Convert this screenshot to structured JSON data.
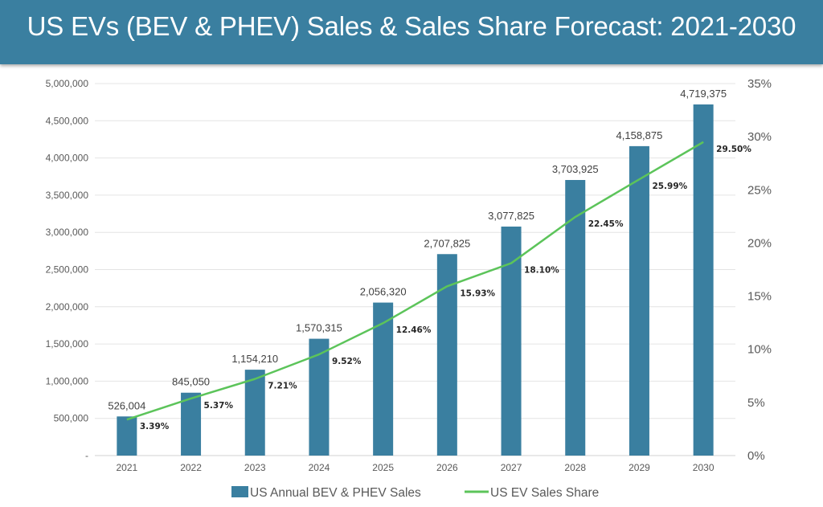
{
  "title": "US EVs (BEV & PHEV) Sales & Sales Share Forecast: 2021-2030",
  "chart_data": {
    "type": "bar+line",
    "categories": [
      "2021",
      "2022",
      "2023",
      "2024",
      "2025",
      "2026",
      "2027",
      "2028",
      "2029",
      "2030"
    ],
    "series": [
      {
        "name": "US Annual BEV & PHEV Sales",
        "type": "bar",
        "axis": "left",
        "color": "#3a7fa0",
        "values": [
          526004,
          845050,
          1154210,
          1570315,
          2056320,
          2707825,
          3077825,
          3703925,
          4158875,
          4719375
        ],
        "labels": [
          "526,004",
          "845,050",
          "1,154,210",
          "1,570,315",
          "2,056,320",
          "2,707,825",
          "3,077,825",
          "3,703,925",
          "4,158,875",
          "4,719,375"
        ]
      },
      {
        "name": "US EV Sales Share",
        "type": "line",
        "axis": "right",
        "color": "#5cc45a",
        "values": [
          3.39,
          5.37,
          7.21,
          9.52,
          12.46,
          15.93,
          18.1,
          22.45,
          25.99,
          29.5
        ],
        "labels": [
          "3.39%",
          "5.37%",
          "7.21%",
          "9.52%",
          "12.46%",
          "15.93%",
          "18.10%",
          "22.45%",
          "25.99%",
          "29.50%"
        ]
      }
    ],
    "y_left": {
      "range": [
        0,
        5000000
      ],
      "ticks": [
        "-",
        "500,000",
        "1,000,000",
        "1,500,000",
        "2,000,000",
        "2,500,000",
        "3,000,000",
        "3,500,000",
        "4,000,000",
        "4,500,000",
        "5,000,000"
      ]
    },
    "y_right": {
      "range": [
        0,
        35
      ],
      "ticks": [
        "0%",
        "5%",
        "10%",
        "15%",
        "20%",
        "25%",
        "30%",
        "35%"
      ]
    },
    "grid": true,
    "legend": "bottom"
  }
}
